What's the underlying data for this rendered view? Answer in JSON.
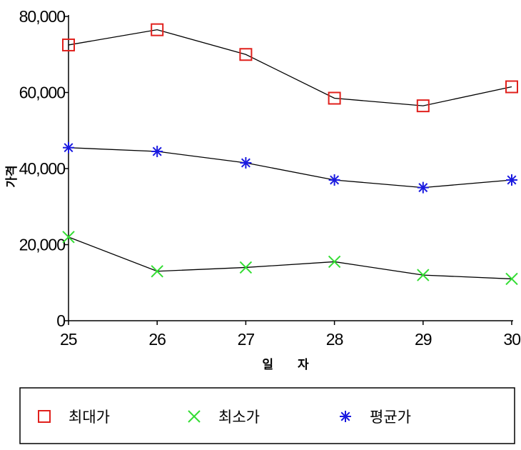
{
  "chart_data": {
    "type": "line",
    "title": "",
    "xlabel": "일 자",
    "ylabel": "가격",
    "categories": [
      "25",
      "26",
      "27",
      "28",
      "29",
      "30"
    ],
    "yticks": [
      "0",
      "20,000",
      "40,000",
      "60,000",
      "80,000"
    ],
    "ylim": [
      0,
      80000
    ],
    "grid": false,
    "legend_position": "bottom",
    "series": [
      {
        "name": "최대가",
        "marker": "square",
        "color": "#e0201c",
        "values": [
          72500,
          76500,
          70000,
          58500,
          56500,
          61500
        ]
      },
      {
        "name": "최소가",
        "marker": "x",
        "color": "#33dd33",
        "values": [
          22000,
          13000,
          14000,
          15500,
          12000,
          11000
        ]
      },
      {
        "name": "평균가",
        "marker": "asterisk",
        "color": "#1a1ae0",
        "values": [
          45500,
          44500,
          41500,
          37000,
          35000,
          37000
        ]
      }
    ]
  }
}
